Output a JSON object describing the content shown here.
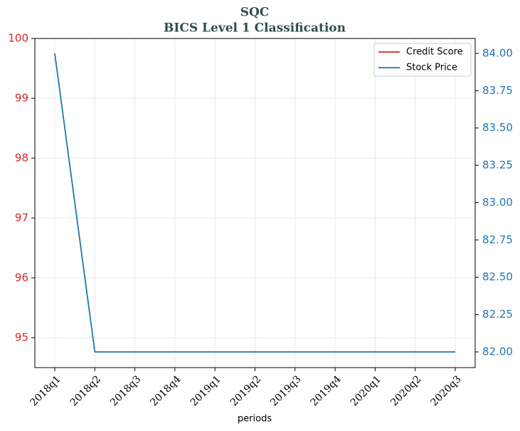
{
  "chart_data": {
    "type": "line",
    "title": "SQC",
    "subtitle": "BICS Level 1 Classification",
    "xlabel": "periods",
    "categories": [
      "2018q1",
      "2018q2",
      "2018q3",
      "2018q4",
      "2019q1",
      "2019q2",
      "2019q3",
      "2019q4",
      "2020q1",
      "2020q2",
      "2020q3"
    ],
    "series": [
      {
        "name": "Credit Score",
        "color": "#d62728",
        "values": [
          null,
          null,
          null,
          null,
          null,
          null,
          null,
          null,
          null,
          null,
          null
        ]
      },
      {
        "name": "Stock Price",
        "color": "#1f77b4",
        "axis": "y2",
        "values": [
          84,
          82,
          82,
          82,
          82,
          82,
          82,
          82,
          82,
          82,
          82
        ]
      }
    ],
    "ylim": [
      94.5,
      100
    ],
    "yticks": [
      95,
      96,
      97,
      98,
      99,
      100
    ],
    "y2lim": [
      81.895,
      84.1
    ],
    "y2ticks": [
      {
        "value": 82,
        "label": "82.00"
      },
      {
        "value": 82.25,
        "label": "82.25"
      },
      {
        "value": 82.5,
        "label": "82.50"
      },
      {
        "value": 82.75,
        "label": "82.75"
      },
      {
        "value": 83,
        "label": "83.00"
      },
      {
        "value": 83.25,
        "label": "83.25"
      },
      {
        "value": 83.5,
        "label": "83.50"
      },
      {
        "value": 83.75,
        "label": "83.75"
      },
      {
        "value": 84,
        "label": "84.00"
      }
    ],
    "grid": true,
    "legend": "upper right"
  }
}
